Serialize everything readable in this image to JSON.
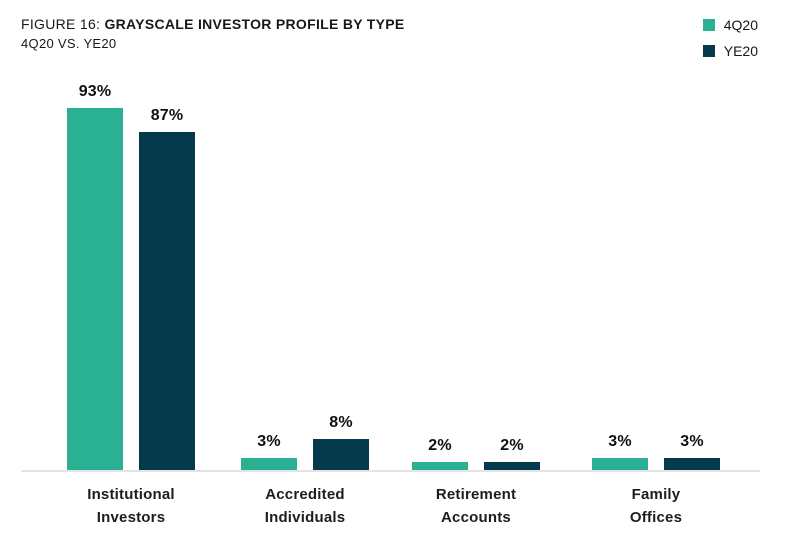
{
  "header": {
    "figure_label": "FIGURE 16:",
    "title": "GRAYSCALE INVESTOR PROFILE BY TYPE",
    "subtitle": "4Q20 VS. YE20"
  },
  "legend": [
    {
      "label": "4Q20",
      "color": "#2AB194"
    },
    {
      "label": "YE20",
      "color": "#043A4B"
    }
  ],
  "chart_data": {
    "type": "bar",
    "title": "GRAYSCALE INVESTOR PROFILE BY TYPE",
    "subtitle": "4Q20 VS. YE20",
    "categories": [
      "Institutional Investors",
      "Accredited Individuals",
      "Retirement Accounts",
      "Family Offices"
    ],
    "category_lines": [
      [
        "Institutional",
        "Investors"
      ],
      [
        "Accredited",
        "Individuals"
      ],
      [
        "Retirement",
        "Accounts"
      ],
      [
        "Family",
        "Offices"
      ]
    ],
    "series": [
      {
        "name": "4Q20",
        "color": "#2AB194",
        "values": [
          93,
          3,
          2,
          3
        ]
      },
      {
        "name": "YE20",
        "color": "#043A4B",
        "values": [
          87,
          8,
          2,
          3
        ]
      }
    ],
    "value_labels": [
      [
        "93%",
        "3%",
        "2%",
        "3%"
      ],
      [
        "87%",
        "8%",
        "2%",
        "3%"
      ]
    ],
    "value_suffix": "%",
    "xlabel": "",
    "ylabel": "",
    "ylim": [
      0,
      100
    ],
    "grid": false,
    "legend_position": "top-right",
    "axis_line_color": "#e4e4e4"
  }
}
